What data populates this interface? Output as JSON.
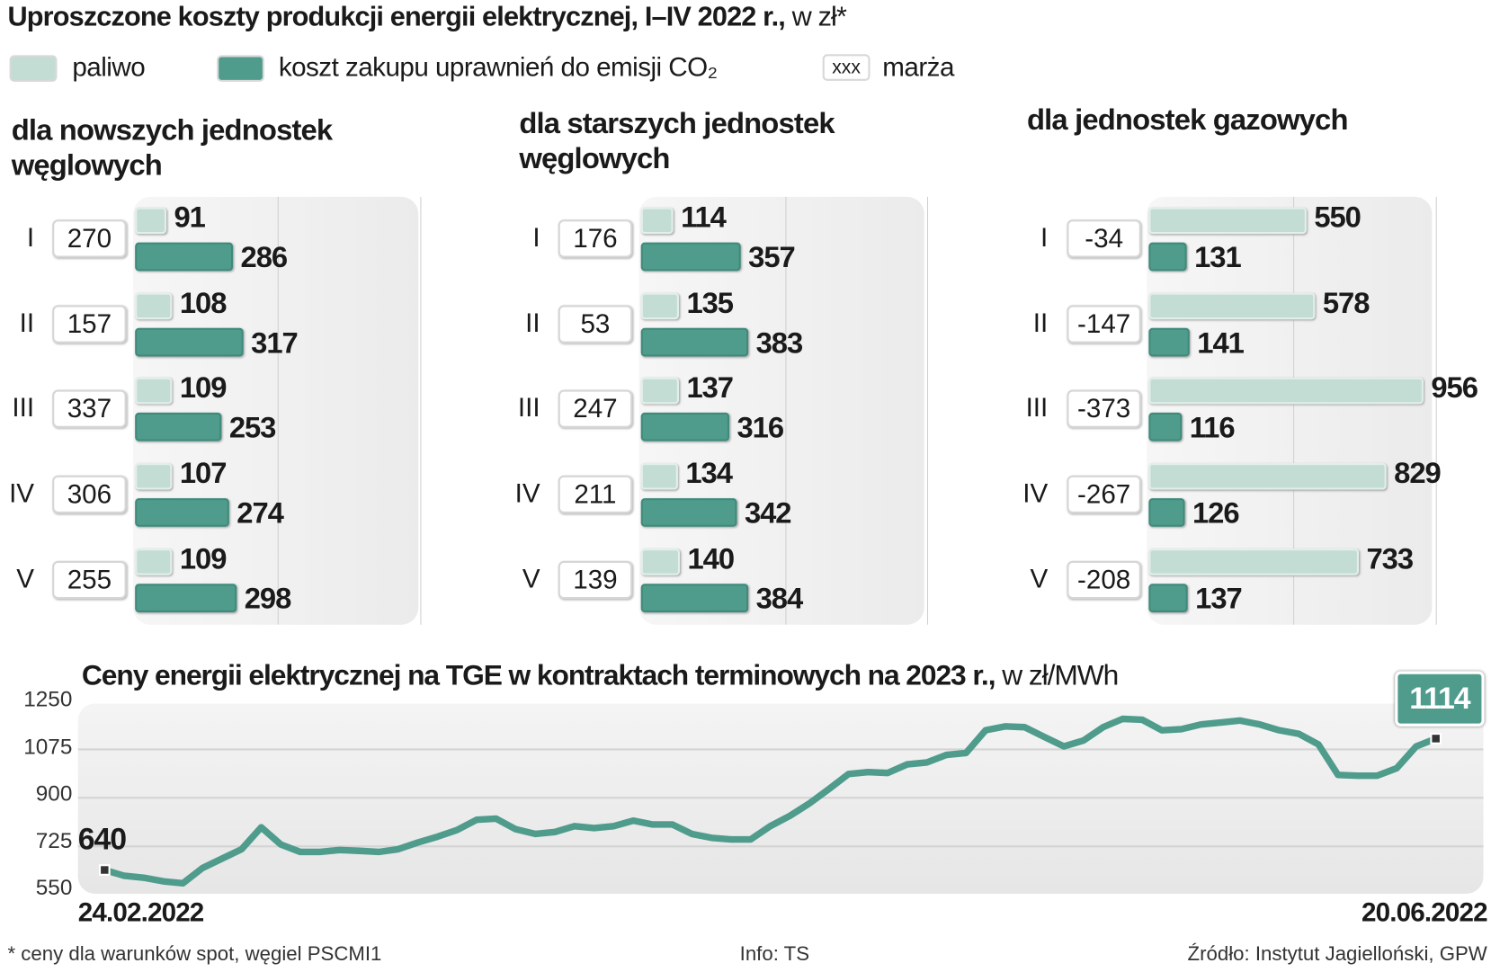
{
  "title": {
    "main": "Uproszczone koszty produkcji energii elektrycznej, I–IV 2022 r.,",
    "unit": " w zł*"
  },
  "legend": [
    {
      "label": "paliwo",
      "color": "#c3ddd5"
    },
    {
      "label": "koszt zakupu uprawnień do emisji CO₂",
      "color": "#4f9c8c"
    },
    {
      "label": "marża",
      "swatch_text": "xxx"
    }
  ],
  "chart_data": [
    {
      "type": "bar",
      "title": "dla nowszych jednostek węglowych",
      "categories": [
        "I",
        "II",
        "III",
        "IV",
        "V"
      ],
      "series": [
        {
          "name": "paliwo",
          "values": [
            91,
            108,
            109,
            107,
            109
          ]
        },
        {
          "name": "koszt zakupu uprawnień do emisji CO₂",
          "values": [
            286,
            317,
            253,
            274,
            298
          ]
        },
        {
          "name": "marża",
          "values": [
            270,
            157,
            337,
            306,
            255
          ]
        }
      ]
    },
    {
      "type": "bar",
      "title": "dla starszych jednostek węglowych",
      "categories": [
        "I",
        "II",
        "III",
        "IV",
        "V"
      ],
      "series": [
        {
          "name": "paliwo",
          "values": [
            114,
            135,
            137,
            134,
            140
          ]
        },
        {
          "name": "koszt zakupu uprawnień do emisji CO₂",
          "values": [
            357,
            383,
            316,
            342,
            384
          ]
        },
        {
          "name": "marża",
          "values": [
            176,
            53,
            247,
            211,
            139
          ]
        }
      ]
    },
    {
      "type": "bar",
      "title": "dla jednostek gazowych",
      "categories": [
        "I",
        "II",
        "III",
        "IV",
        "V"
      ],
      "series": [
        {
          "name": "paliwo",
          "values": [
            550,
            578,
            956,
            829,
            733
          ]
        },
        {
          "name": "koszt zakupu uprawnień do emisji CO₂",
          "values": [
            131,
            141,
            116,
            126,
            137
          ]
        },
        {
          "name": "marża",
          "values": [
            -34,
            -147,
            -373,
            -267,
            -208
          ]
        }
      ]
    },
    {
      "type": "line",
      "title": "Ceny energii elektrycznej na TGE w kontraktach terminowych na 2023 r.,",
      "unit": " w zł/MWh",
      "x_start": "24.02.2022",
      "x_end": "20.06.2022",
      "ylim": [
        550,
        1250
      ],
      "yticks": [
        "1250",
        "1075",
        "900",
        "725",
        "550"
      ],
      "grid": true,
      "start_label": "640",
      "end_label": "1114",
      "color": "#4f9c8c",
      "values": [
        640,
        619,
        612,
        599,
        592,
        647,
        681,
        715,
        794,
        732,
        705,
        705,
        712,
        709,
        705,
        715,
        739,
        760,
        784,
        821,
        825,
        787,
        770,
        777,
        798,
        791,
        798,
        818,
        804,
        804,
        770,
        756,
        750,
        750,
        798,
        835,
        880,
        932,
        986,
        993,
        990,
        1021,
        1028,
        1055,
        1062,
        1144,
        1158,
        1155,
        1120,
        1086,
        1107,
        1155,
        1185,
        1182,
        1144,
        1148,
        1165,
        1172,
        1179,
        1165,
        1144,
        1131,
        1093,
        983,
        980,
        980,
        1007,
        1086,
        1114
      ]
    }
  ],
  "footer": {
    "note": "* ceny dla warunków spot, węgiel PSCMI1",
    "info": "Info: TS",
    "source": "Źródło: Instytut Jagielloński, GPW"
  }
}
